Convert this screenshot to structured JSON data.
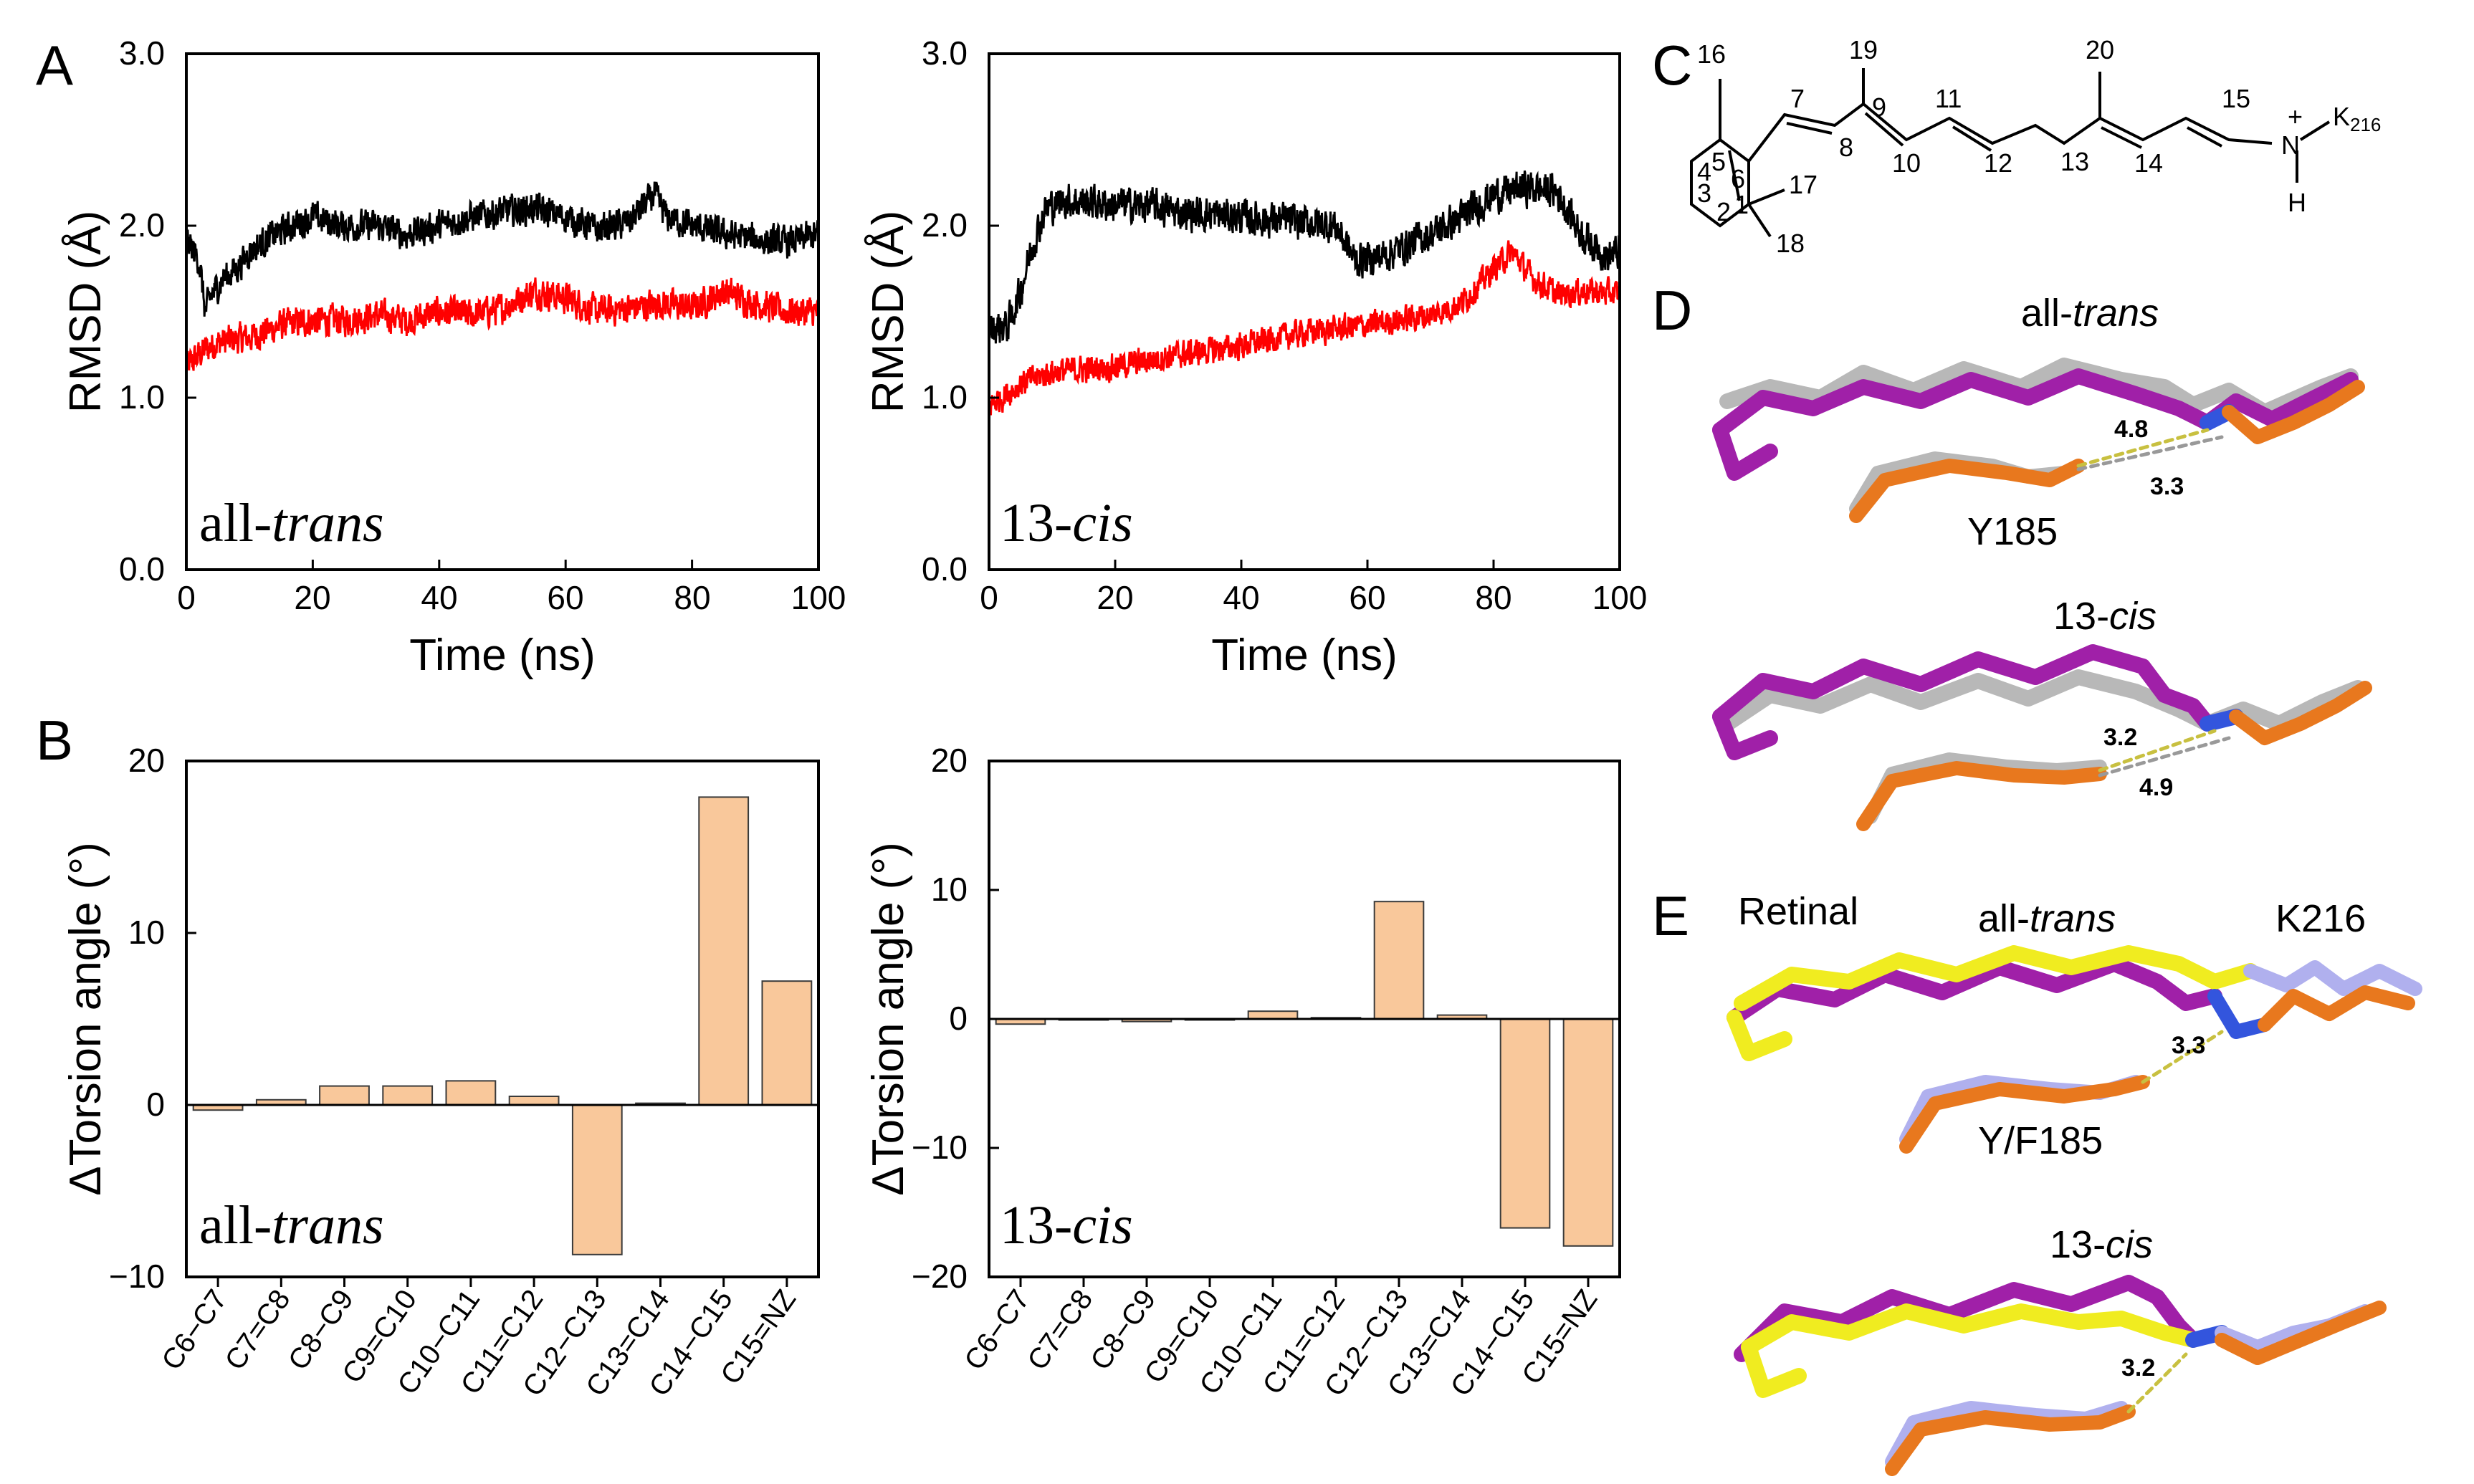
{
  "panel_letters": {
    "a": "A",
    "b": "B",
    "c": "C",
    "d": "D",
    "e": "E"
  },
  "colors": {
    "black_trace": "#000000",
    "red_trace": "#ff0000",
    "bar_fill": "#f9c89b",
    "bar_stroke": "#3a3a3a",
    "magenta": "#a020a8",
    "grey": "#b8b8b8",
    "orange": "#e8781e",
    "blue": "#3355dd",
    "lavender": "#b0b0ee",
    "yellow": "#f0ec20",
    "red_atom": "#e03030",
    "hbond": "#c8c040"
  },
  "chart_data": [
    {
      "id": "A1",
      "type": "line",
      "title": "",
      "xlabel": "Time (ns)",
      "ylabel": "RMSD (Å)",
      "xlim": [
        0,
        100
      ],
      "ylim": [
        0,
        3
      ],
      "xticks": [
        "0",
        "20",
        "40",
        "60",
        "80",
        "100"
      ],
      "yticks": [
        "0.0",
        "1.0",
        "2.0",
        "3.0"
      ],
      "annotation": {
        "plain": "all-",
        "italic": "trans"
      },
      "series": [
        {
          "name": "black",
          "color": "#000000",
          "points": [
            [
              0,
              1.92
            ],
            [
              2,
              1.8
            ],
            [
              3,
              1.5
            ],
            [
              4,
              1.6
            ],
            [
              6,
              1.7
            ],
            [
              8,
              1.75
            ],
            [
              10,
              1.85
            ],
            [
              14,
              1.95
            ],
            [
              18,
              2.02
            ],
            [
              20,
              2.05
            ],
            [
              25,
              2.0
            ],
            [
              30,
              2.0
            ],
            [
              35,
              1.95
            ],
            [
              40,
              2.0
            ],
            [
              45,
              2.05
            ],
            [
              50,
              2.08
            ],
            [
              55,
              2.1
            ],
            [
              60,
              2.05
            ],
            [
              65,
              1.98
            ],
            [
              70,
              2.02
            ],
            [
              74,
              2.18
            ],
            [
              76,
              2.05
            ],
            [
              80,
              2.0
            ],
            [
              85,
              1.95
            ],
            [
              90,
              1.92
            ],
            [
              95,
              1.9
            ],
            [
              100,
              1.95
            ]
          ],
          "noise": 0.08
        },
        {
          "name": "red",
          "color": "#ff0000",
          "points": [
            [
              0,
              1.18
            ],
            [
              3,
              1.28
            ],
            [
              5,
              1.32
            ],
            [
              10,
              1.35
            ],
            [
              15,
              1.42
            ],
            [
              20,
              1.45
            ],
            [
              25,
              1.45
            ],
            [
              30,
              1.48
            ],
            [
              35,
              1.45
            ],
            [
              40,
              1.5
            ],
            [
              45,
              1.48
            ],
            [
              50,
              1.52
            ],
            [
              55,
              1.62
            ],
            [
              60,
              1.58
            ],
            [
              65,
              1.5
            ],
            [
              70,
              1.52
            ],
            [
              75,
              1.55
            ],
            [
              80,
              1.52
            ],
            [
              85,
              1.62
            ],
            [
              90,
              1.55
            ],
            [
              95,
              1.5
            ],
            [
              100,
              1.5
            ]
          ],
          "noise": 0.08
        }
      ]
    },
    {
      "id": "A2",
      "type": "line",
      "title": "",
      "xlabel": "Time (ns)",
      "ylabel": "RMSD (Å)",
      "xlim": [
        0,
        100
      ],
      "ylim": [
        0,
        3
      ],
      "xticks": [
        "0",
        "20",
        "40",
        "60",
        "80",
        "100"
      ],
      "yticks": [
        "0.0",
        "1.0",
        "2.0",
        "3.0"
      ],
      "annotation": {
        "plain": "13-",
        "italic": "cis"
      },
      "series": [
        {
          "name": "black",
          "color": "#000000",
          "points": [
            [
              0,
              1.4
            ],
            [
              3,
              1.42
            ],
            [
              5,
              1.62
            ],
            [
              7,
              1.9
            ],
            [
              9,
              2.1
            ],
            [
              12,
              2.15
            ],
            [
              20,
              2.12
            ],
            [
              25,
              2.12
            ],
            [
              30,
              2.08
            ],
            [
              40,
              2.05
            ],
            [
              50,
              2.02
            ],
            [
              55,
              2.0
            ],
            [
              58,
              1.8
            ],
            [
              62,
              1.82
            ],
            [
              66,
              1.88
            ],
            [
              70,
              1.95
            ],
            [
              75,
              2.05
            ],
            [
              80,
              2.18
            ],
            [
              85,
              2.22
            ],
            [
              90,
              2.2
            ],
            [
              94,
              1.95
            ],
            [
              98,
              1.82
            ],
            [
              100,
              1.85
            ]
          ],
          "noise": 0.09
        },
        {
          "name": "red",
          "color": "#ff0000",
          "points": [
            [
              0,
              0.95
            ],
            [
              5,
              1.08
            ],
            [
              10,
              1.15
            ],
            [
              20,
              1.18
            ],
            [
              30,
              1.25
            ],
            [
              40,
              1.3
            ],
            [
              50,
              1.38
            ],
            [
              60,
              1.42
            ],
            [
              70,
              1.48
            ],
            [
              75,
              1.55
            ],
            [
              80,
              1.75
            ],
            [
              83,
              1.85
            ],
            [
              86,
              1.7
            ],
            [
              90,
              1.6
            ],
            [
              95,
              1.62
            ],
            [
              100,
              1.6
            ]
          ],
          "noise": 0.07
        }
      ]
    },
    {
      "id": "B1",
      "type": "bar",
      "title": "",
      "xlabel": "",
      "ylabel": "ΔTorsion angle (°)",
      "ylim": [
        -10,
        20
      ],
      "yticks": [
        "−10",
        "0",
        "10",
        "20"
      ],
      "annotation": {
        "plain": "all-",
        "italic": "trans"
      },
      "categories": [
        "C6−C7",
        "C7=C8",
        "C8−C9",
        "C9=C10",
        "C10−C11",
        "C11=C12",
        "C12−C13",
        "C13=C14",
        "C14−C15",
        "C15=NZ"
      ],
      "values": [
        -0.3,
        0.3,
        1.1,
        1.1,
        1.4,
        0.5,
        -8.7,
        0.1,
        17.9,
        7.2
      ]
    },
    {
      "id": "B2",
      "type": "bar",
      "title": "",
      "xlabel": "",
      "ylabel": "ΔTorsion angle (°)",
      "ylim": [
        -20,
        20
      ],
      "yticks": [
        "−20",
        "−10",
        "0",
        "10",
        "20"
      ],
      "annotation": {
        "plain": "13-",
        "italic": "cis"
      },
      "categories": [
        "C6−C7",
        "C7=C8",
        "C8−C9",
        "C9=C10",
        "C10−C11",
        "C11=C12",
        "C12−C13",
        "C13=C14",
        "C14−C15",
        "C15=NZ"
      ],
      "values": [
        -0.4,
        0.0,
        -0.2,
        0.0,
        0.6,
        0.1,
        9.1,
        0.3,
        -16.2,
        -17.6
      ]
    }
  ],
  "panel_c": {
    "atoms": {
      "n16": "16",
      "n7": "7",
      "n19": "19",
      "n9": "9",
      "n11": "11",
      "n20": "20",
      "n15": "15",
      "n5": "5",
      "n6": "6",
      "n8": "8",
      "n13": "13",
      "n4": "4",
      "n3": "3",
      "n1": "1",
      "n2": "2",
      "n17": "17",
      "n10": "10",
      "n12": "12",
      "n14": "14",
      "n18": "18"
    },
    "nitrogen": "N",
    "plus": "+",
    "hydrogen": "H",
    "lysine": "K",
    "lysine_sub": "216"
  },
  "panel_d": {
    "top_label": {
      "plain": "all-",
      "italic": "trans"
    },
    "bottom_label": {
      "plain": "13-",
      "italic": "cis"
    },
    "residue": "Y185",
    "dist_top_a": "4.8",
    "dist_top_b": "3.3",
    "dist_bottom_a": "3.2",
    "dist_bottom_b": "4.9"
  },
  "panel_e": {
    "retinal": "Retinal",
    "top_label": {
      "plain": "all-",
      "italic": "trans"
    },
    "lys": "K216",
    "bottom_label": {
      "plain": "13-",
      "italic": "cis"
    },
    "residue": "Y/F185",
    "dist_top": "3.3",
    "dist_bottom": "3.2"
  }
}
